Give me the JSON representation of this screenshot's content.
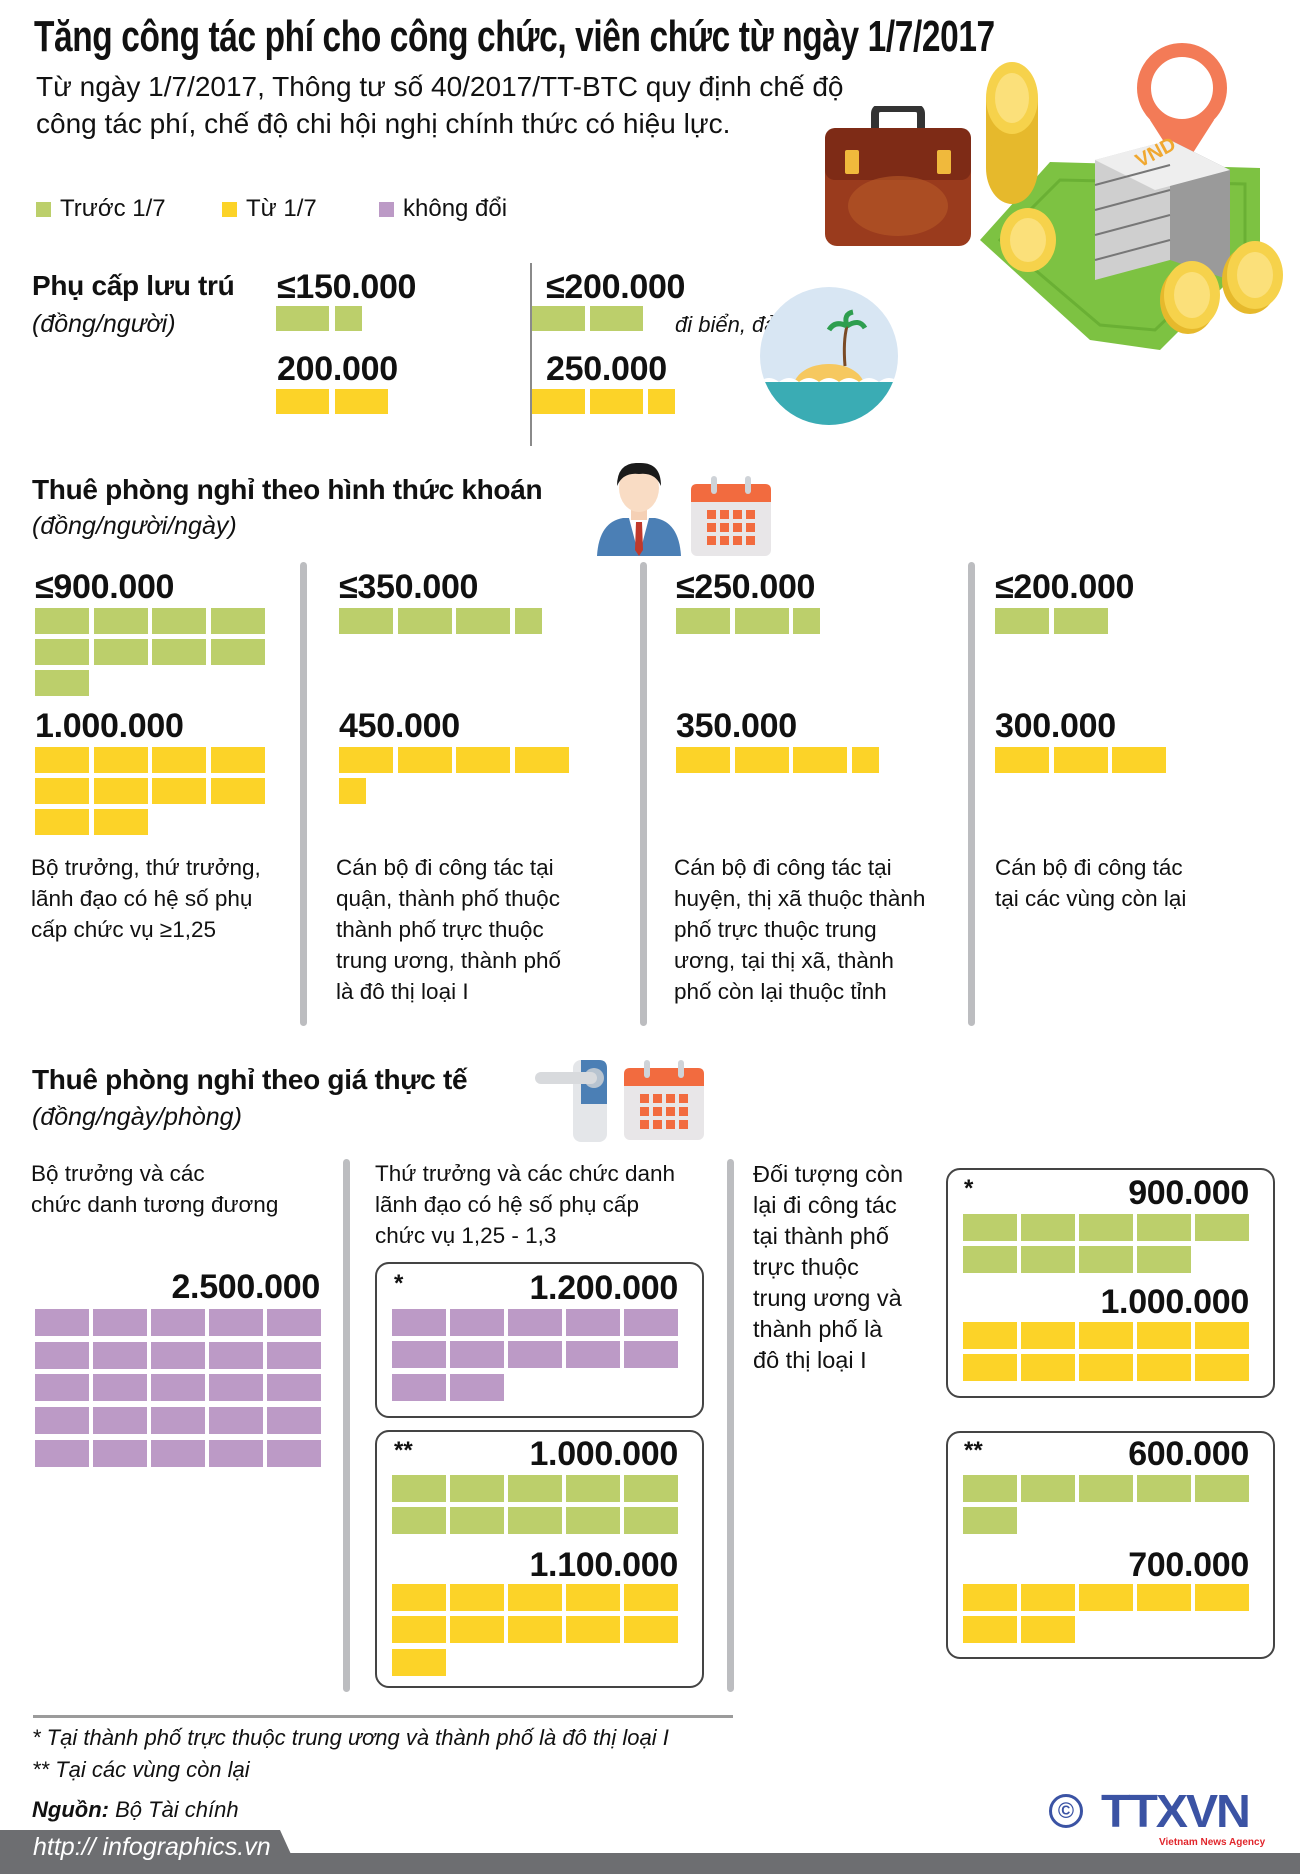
{
  "title": "Tăng công tác phí cho công chức, viên chức từ ngày 1/7/2017",
  "subtitle": "Từ ngày 1/7/2017, Thông tư số 40/2017/TT-BTC quy định chế độ\ncông tác phí, chế độ chi hội nghị chính thức có hiệu lực.",
  "colors": {
    "before": "#bccf6b",
    "after": "#fcd328",
    "unchanged": "#bc9ac6",
    "divider": "#bcbdc0",
    "footer_bar": "#6d6e71",
    "logo_blue": "#3b53a4",
    "logo_red": "#e1262c"
  },
  "legend": [
    {
      "label": "Trước 1/7",
      "color": "#bccf6b"
    },
    {
      "label": "Từ 1/7",
      "color": "#fcd328"
    },
    {
      "label": "không đổi",
      "color": "#bc9ac6"
    }
  ],
  "block_unit": 100000,
  "allowance": {
    "title": "Phụ cấp lưu trú",
    "unit": "(đồng/người)",
    "columns": [
      {
        "before_label": "≤150.000",
        "before_value": 150000,
        "after_label": "200.000",
        "after_value": 200000
      },
      {
        "before_label": "≤200.000",
        "before_value": 200000,
        "after_label": "250.000",
        "after_value": 250000,
        "note": "đi biển, đảo"
      }
    ]
  },
  "lump_sum": {
    "title": "Thuê phòng nghỉ theo hình thức khoán",
    "unit": "(đồng/người/ngày)",
    "columns": [
      {
        "before_label": "≤900.000",
        "before_value": 900000,
        "after_label": "1.000.000",
        "after_value": 1000000,
        "description": "Bộ trưởng, thứ trưởng,\nlãnh đạo có hệ số phụ\ncấp chức vụ ≥1,25"
      },
      {
        "before_label": "≤350.000",
        "before_value": 350000,
        "after_label": "450.000",
        "after_value": 450000,
        "description": "Cán bộ đi công tác tại\nquận, thành phố thuộc\nthành phố trực thuộc\ntrung ương, thành phố\nlà đô thị loại I"
      },
      {
        "before_label": "≤250.000",
        "before_value": 250000,
        "after_label": "350.000",
        "after_value": 350000,
        "description": "Cán bộ đi công tác tại\nhuyện, thị xã thuộc thành\nphố trực thuộc trung\nương, tại thị xã, thành\nphố còn lại thuộc tỉnh"
      },
      {
        "before_label": "≤200.000",
        "before_value": 200000,
        "after_label": "300.000",
        "after_value": 300000,
        "description": "Cán bộ đi công tác\n tại các vùng còn lại"
      }
    ]
  },
  "actual_price": {
    "title": "Thuê phòng nghỉ theo giá thực tế",
    "unit": "(đồng/ngày/phòng)",
    "minister": {
      "description": "Bộ trưởng và các\nchức danh tương đương",
      "label": "2.500.000",
      "value": 2500000
    },
    "deputy": {
      "description": "Thứ trưởng và các chức danh\nlãnh đạo có hệ số phụ cấp\nchức vụ 1,25 - 1,3",
      "zone1": {
        "marker": "*",
        "label": "1.200.000",
        "value": 1200000
      },
      "zone2": {
        "marker": "**",
        "before_label": "1.000.000",
        "before_value": 1000000,
        "after_label": "1.100.000",
        "after_value": 1100000
      }
    },
    "others": {
      "description": "Đối tượng còn\nlại đi công tác\ntại thành phố\ntrực thuộc\ntrung ương và\nthành phố là\nđô thị loại I",
      "zone1": {
        "marker": "*",
        "before_label": "900.000",
        "before_value": 900000,
        "after_label": "1.000.000",
        "after_value": 1000000
      },
      "zone2": {
        "marker": "**",
        "before_label": "600.000",
        "before_value": 600000,
        "after_label": "700.000",
        "after_value": 700000
      }
    }
  },
  "footnotes": [
    "* Tại thành phố trực thuộc trung ương và thành phố là đô thị loại I",
    "** Tại các vùng còn lại"
  ],
  "source": {
    "label": "Nguồn:",
    "value": "Bộ Tài chính"
  },
  "url": "http:// infographics.vn",
  "logo": {
    "text": "TTXVN",
    "tagline": "Vietnam News Agency",
    "copyright": "©"
  },
  "illustrations": {
    "money_label": "VND",
    "icons": [
      "briefcase-icon",
      "money-stack-icon",
      "coin-icon",
      "location-pin-icon",
      "island-icon",
      "businessman-icon",
      "calendar-icon",
      "door-handle-icon"
    ]
  }
}
